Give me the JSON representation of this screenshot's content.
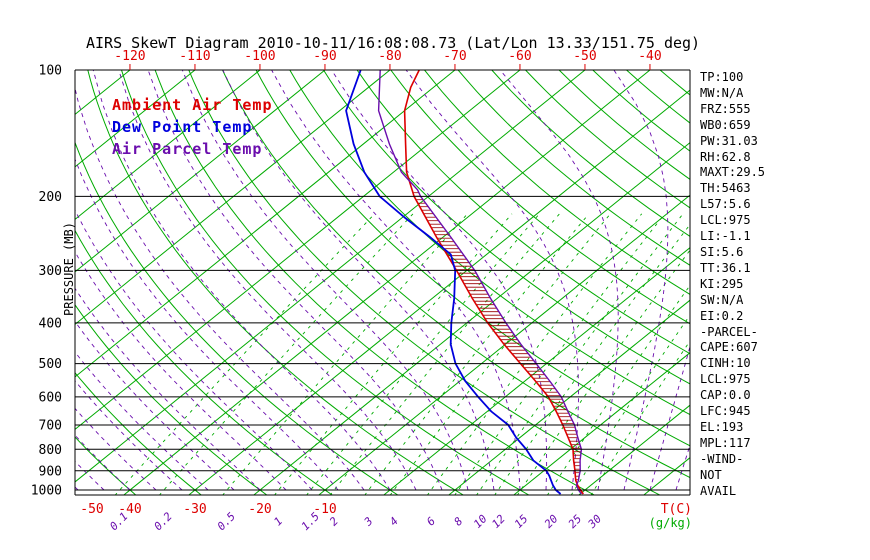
{
  "title": "AIRS SkewT Diagram 2010-10-11/16:08:08.73 (Lat/Lon 13.33/151.75 deg)",
  "legend": [
    {
      "label": "Ambient Air Temp",
      "color": "#dd0000"
    },
    {
      "label": "Dew Point Temp",
      "color": "#0000dd"
    },
    {
      "label": "Air Parcel Temp",
      "color": "#6a0dad"
    }
  ],
  "axes": {
    "y_label": "PRESSURE (MB)",
    "pressure_ticks": [
      100,
      200,
      300,
      400,
      500,
      600,
      700,
      800,
      900,
      1000
    ],
    "top_temp_ticks": [
      -120,
      -110,
      -100,
      -90,
      -80,
      -70,
      -60,
      -50,
      -40
    ],
    "bottom_temp_ticks": [
      -50,
      -40,
      -30,
      -20,
      -10
    ],
    "bottom_temp_unit": "T(C)",
    "mixing_ratio_values": [
      0.1,
      0.2,
      0.5,
      1,
      1.5,
      2,
      3,
      4,
      6,
      8,
      10,
      12,
      15,
      20,
      25,
      30
    ],
    "mixing_ratio_unit": "(g/kg)"
  },
  "stats": [
    "TP:100",
    "MW:N/A",
    "FRZ:555",
    "WB0:659",
    "PW:31.03",
    "RH:62.8",
    "MAXT:29.5",
    "TH:5463",
    "L57:5.6",
    "LCL:975",
    "LI:-1.1",
    "SI:5.6",
    "TT:36.1",
    "KI:295",
    "SW:N/A",
    "EI:0.2",
    "-PARCEL-",
    "CAPE:607",
    "CINH:10",
    "LCL:975",
    "CAP:0.0",
    "LFC:945",
    "EL:193",
    "MPL:117",
    "-WIND-",
    "NOT",
    "AVAIL"
  ],
  "colors": {
    "temp_axis": "#dd0000",
    "isotherm": "#00aa00",
    "dry_adiabat": "#00aa00",
    "moist_adiabat": "#6a0dad",
    "mixing_ratio": "#00aa00",
    "pressure_lines": "#000000",
    "hatch": "#990000",
    "background": "#ffffff"
  },
  "chart_data": {
    "type": "line",
    "title": "AIRS SkewT Diagram 2010-10-11/16:08:08.73 (Lat/Lon 13.33/151.75 deg)",
    "xlabel": "Temperature (C), skewed 45 deg",
    "ylabel": "Pressure (MB), log scale inverted",
    "pressure_range": [
      100,
      1025
    ],
    "surface_temp_axis_range": [
      -50,
      45
    ],
    "grid": "isotherms, dry adiabats, moist adiabats (dashed), mixing ratio lines (dashed)",
    "legend_position": "top-left inside plot",
    "series": [
      {
        "name": "Ambient Air Temp",
        "color": "#dd0000",
        "width": 1.6,
        "points": [
          [
            1022,
            30.5
          ],
          [
            1000,
            29.3
          ],
          [
            975,
            28.0
          ],
          [
            950,
            26.8
          ],
          [
            925,
            25.8
          ],
          [
            900,
            24.8
          ],
          [
            850,
            22.6
          ],
          [
            800,
            20.4
          ],
          [
            750,
            17.4
          ],
          [
            700,
            14.2
          ],
          [
            650,
            10.6
          ],
          [
            600,
            6.6
          ],
          [
            550,
            1.6
          ],
          [
            500,
            -4.0
          ],
          [
            450,
            -10.2
          ],
          [
            400,
            -16.8
          ],
          [
            350,
            -23.8
          ],
          [
            300,
            -31.6
          ],
          [
            250,
            -41.0
          ],
          [
            200,
            -52.2
          ],
          [
            175,
            -58.0
          ],
          [
            150,
            -63.5
          ],
          [
            125,
            -70.0
          ],
          [
            110,
            -73.5
          ],
          [
            100,
            -75.5
          ]
        ]
      },
      {
        "name": "Dew Point Temp",
        "color": "#0000dd",
        "width": 1.8,
        "points": [
          [
            1022,
            27.0
          ],
          [
            1000,
            25.5
          ],
          [
            975,
            24.2
          ],
          [
            950,
            23.0
          ],
          [
            925,
            21.8
          ],
          [
            900,
            20.4
          ],
          [
            850,
            16.4
          ],
          [
            800,
            13.2
          ],
          [
            750,
            9.4
          ],
          [
            700,
            5.8
          ],
          [
            650,
            0.6
          ],
          [
            600,
            -4.2
          ],
          [
            550,
            -9.2
          ],
          [
            500,
            -14.0
          ],
          [
            450,
            -18.4
          ],
          [
            400,
            -22.4
          ],
          [
            350,
            -26.6
          ],
          [
            300,
            -31.8
          ],
          [
            275,
            -35.5
          ],
          [
            250,
            -42.0
          ],
          [
            225,
            -49.5
          ],
          [
            200,
            -57.5
          ],
          [
            175,
            -64.5
          ],
          [
            150,
            -71.5
          ],
          [
            125,
            -79.0
          ],
          [
            100,
            -84.5
          ]
        ]
      },
      {
        "name": "Air Parcel Temp",
        "color": "#6a0dad",
        "width": 1.4,
        "points": [
          [
            1022,
            30.2
          ],
          [
            1000,
            29.0
          ],
          [
            975,
            27.8
          ],
          [
            950,
            27.2
          ],
          [
            925,
            26.4
          ],
          [
            900,
            25.6
          ],
          [
            850,
            23.6
          ],
          [
            800,
            21.7
          ],
          [
            750,
            18.9
          ],
          [
            700,
            16.0
          ],
          [
            650,
            12.4
          ],
          [
            600,
            8.6
          ],
          [
            550,
            3.8
          ],
          [
            500,
            -1.6
          ],
          [
            450,
            -7.6
          ],
          [
            400,
            -14.0
          ],
          [
            350,
            -21.0
          ],
          [
            300,
            -28.8
          ],
          [
            250,
            -38.8
          ],
          [
            200,
            -51.2
          ],
          [
            193,
            -52.9
          ],
          [
            175,
            -58.8
          ],
          [
            150,
            -66.0
          ],
          [
            125,
            -74.0
          ],
          [
            100,
            -81.5
          ]
        ]
      }
    ],
    "hatch": {
      "from_p": 945,
      "to_p": 193,
      "between": [
        "Ambient Air Temp",
        "Air Parcel Temp"
      ],
      "color": "#990000",
      "meaning": "CAPE area between parcel and ambient temperature"
    }
  }
}
